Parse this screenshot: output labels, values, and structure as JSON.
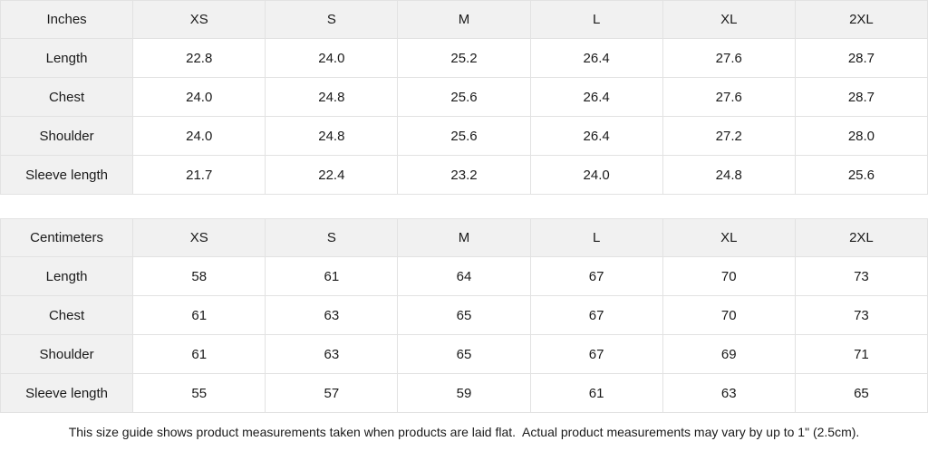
{
  "colors": {
    "background": "#ffffff",
    "header_cell_background": "#f1f1f1",
    "border": "#e2e2e2",
    "text": "#1a1a1a"
  },
  "tables": [
    {
      "unit_label": "Inches",
      "columns": [
        "XS",
        "S",
        "M",
        "L",
        "XL",
        "2XL"
      ],
      "rows": [
        {
          "label": "Length",
          "values": [
            "22.8",
            "24.0",
            "25.2",
            "26.4",
            "27.6",
            "28.7"
          ]
        },
        {
          "label": "Chest",
          "values": [
            "24.0",
            "24.8",
            "25.6",
            "26.4",
            "27.6",
            "28.7"
          ]
        },
        {
          "label": "Shoulder",
          "values": [
            "24.0",
            "24.8",
            "25.6",
            "26.4",
            "27.2",
            "28.0"
          ]
        },
        {
          "label": "Sleeve length",
          "values": [
            "21.7",
            "22.4",
            "23.2",
            "24.0",
            "24.8",
            "25.6"
          ]
        }
      ]
    },
    {
      "unit_label": "Centimeters",
      "columns": [
        "XS",
        "S",
        "M",
        "L",
        "XL",
        "2XL"
      ],
      "rows": [
        {
          "label": "Length",
          "values": [
            "58",
            "61",
            "64",
            "67",
            "70",
            "73"
          ]
        },
        {
          "label": "Chest",
          "values": [
            "61",
            "63",
            "65",
            "67",
            "70",
            "73"
          ]
        },
        {
          "label": "Shoulder",
          "values": [
            "61",
            "63",
            "65",
            "67",
            "69",
            "71"
          ]
        },
        {
          "label": "Sleeve length",
          "values": [
            "55",
            "57",
            "59",
            "61",
            "63",
            "65"
          ]
        }
      ]
    }
  ],
  "footer": {
    "note": "This size guide shows product measurements taken when products are laid flat.  Actual product measurements may vary by up to 1\" (2.5cm)."
  }
}
